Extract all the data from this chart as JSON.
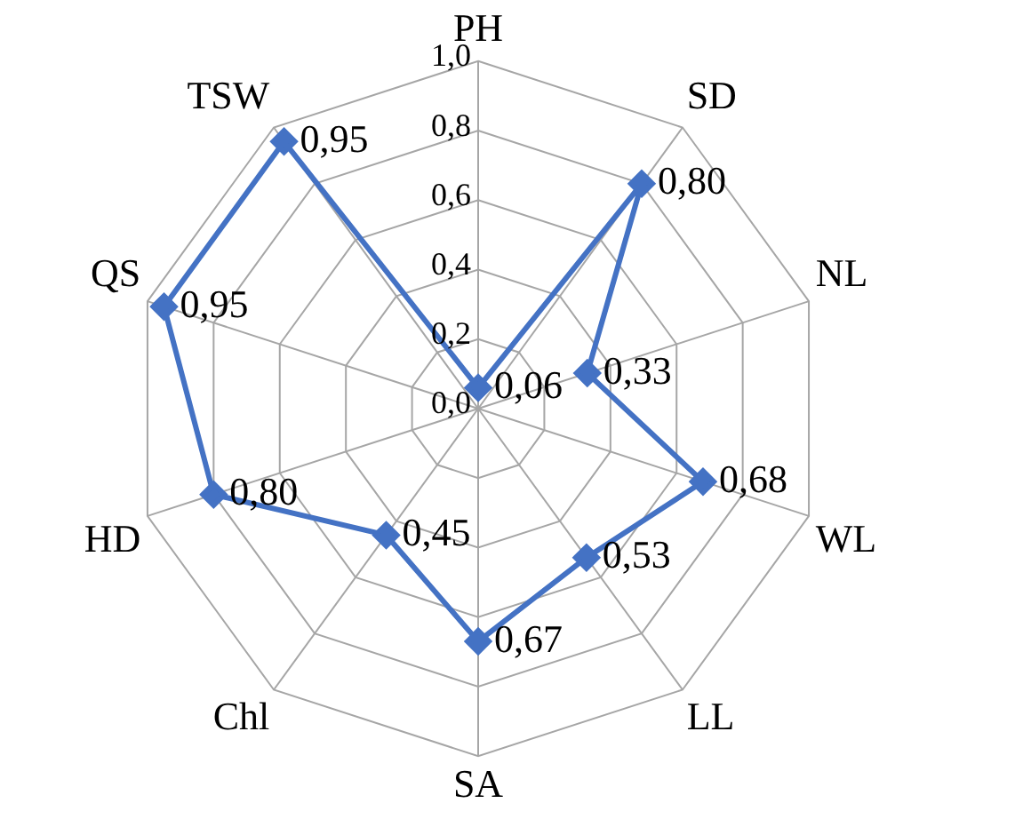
{
  "chart_data": {
    "type": "radar",
    "categories": [
      "PH",
      "SD",
      "NL",
      "WL",
      "LL",
      "SA",
      "Chl",
      "HD",
      "QS",
      "TSW"
    ],
    "series": [
      {
        "color": "#4472c4",
        "values": [
          0.06,
          0.8,
          0.33,
          0.68,
          0.53,
          0.67,
          0.45,
          0.8,
          0.95,
          0.95
        ],
        "value_labels": [
          "0,06",
          "0,80",
          "0,33",
          "0,68",
          "0,53",
          "0,67",
          "0,45",
          "0,80",
          "0,95",
          "0,95"
        ]
      }
    ],
    "ylim": [
      0,
      1
    ],
    "yticks": [
      {
        "value": 0,
        "label": "0,0"
      },
      {
        "value": 0.2,
        "label": "0,2"
      },
      {
        "value": 0.4,
        "label": "0,4"
      },
      {
        "value": 0.6,
        "label": "0,6"
      },
      {
        "value": 0.8,
        "label": "0,8"
      },
      {
        "value": 1,
        "label": "1,0"
      }
    ],
    "grid": true,
    "legend": false,
    "marker": "diamond",
    "line_style": "solid"
  }
}
